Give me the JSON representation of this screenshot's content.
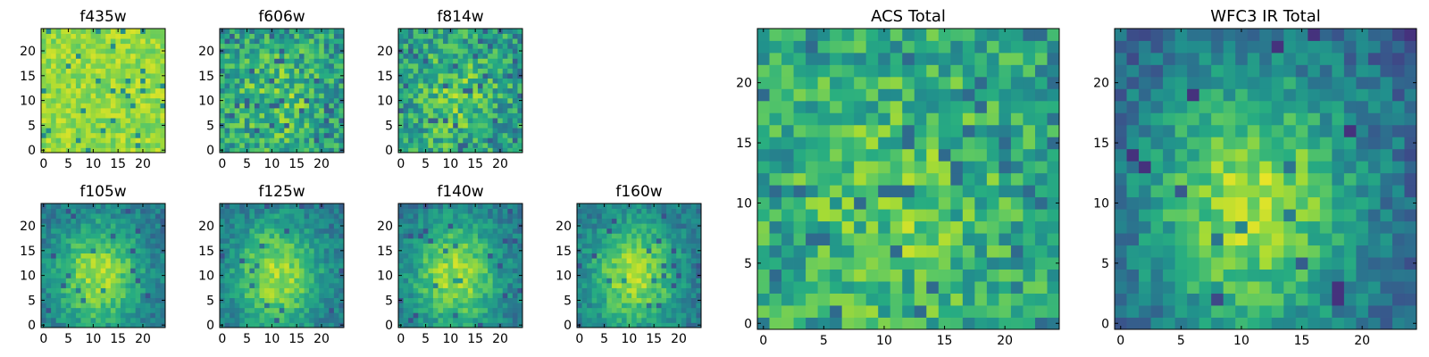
{
  "figure": {
    "colormap": "viridis",
    "colormap_stops": [
      "#440154",
      "#3b528b",
      "#21918c",
      "#5ec962",
      "#fde725"
    ]
  },
  "chart_data": [
    {
      "type": "heatmap",
      "title": "f435w",
      "grid_size": 25,
      "xlim": [
        0,
        24
      ],
      "ylim": [
        0,
        24
      ],
      "xticks": [
        "0",
        "5",
        "10",
        "15",
        "20"
      ],
      "yticks": [
        "0",
        "5",
        "10",
        "15",
        "20"
      ],
      "structure": "noise",
      "cmap_range": [
        0.45,
        0.95
      ]
    },
    {
      "type": "heatmap",
      "title": "f606w",
      "grid_size": 25,
      "xlim": [
        0,
        24
      ],
      "ylim": [
        0,
        24
      ],
      "xticks": [
        "0",
        "5",
        "10",
        "15",
        "20"
      ],
      "yticks": [
        "0",
        "5",
        "10",
        "15",
        "20"
      ],
      "structure": "weak-blob",
      "cmap_range": [
        0.3,
        0.95
      ]
    },
    {
      "type": "heatmap",
      "title": "f814w",
      "grid_size": 25,
      "xlim": [
        0,
        24
      ],
      "ylim": [
        0,
        24
      ],
      "xticks": [
        "0",
        "5",
        "10",
        "15",
        "20"
      ],
      "yticks": [
        "0",
        "5",
        "10",
        "15",
        "20"
      ],
      "structure": "weak-blob",
      "cmap_range": [
        0.3,
        0.95
      ]
    },
    {
      "type": "heatmap",
      "title": "f105w",
      "grid_size": 25,
      "xlim": [
        0,
        24
      ],
      "ylim": [
        0,
        24
      ],
      "xticks": [
        "0",
        "5",
        "10",
        "15",
        "20"
      ],
      "yticks": [
        "0",
        "5",
        "10",
        "15",
        "20"
      ],
      "structure": "blob",
      "cmap_range": [
        0.25,
        0.95
      ]
    },
    {
      "type": "heatmap",
      "title": "f125w",
      "grid_size": 25,
      "xlim": [
        0,
        24
      ],
      "ylim": [
        0,
        24
      ],
      "xticks": [
        "0",
        "5",
        "10",
        "15",
        "20"
      ],
      "yticks": [
        "0",
        "5",
        "10",
        "15",
        "20"
      ],
      "structure": "blob",
      "cmap_range": [
        0.25,
        0.95
      ]
    },
    {
      "type": "heatmap",
      "title": "f140w",
      "grid_size": 25,
      "xlim": [
        0,
        24
      ],
      "ylim": [
        0,
        24
      ],
      "xticks": [
        "0",
        "5",
        "10",
        "15",
        "20"
      ],
      "yticks": [
        "0",
        "5",
        "10",
        "15",
        "20"
      ],
      "structure": "blob",
      "cmap_range": [
        0.25,
        0.95
      ]
    },
    {
      "type": "heatmap",
      "title": "f160w",
      "grid_size": 25,
      "xlim": [
        0,
        24
      ],
      "ylim": [
        0,
        24
      ],
      "xticks": [
        "0",
        "5",
        "10",
        "15",
        "20"
      ],
      "yticks": [
        "0",
        "5",
        "10",
        "15",
        "20"
      ],
      "structure": "blob",
      "cmap_range": [
        0.25,
        0.95
      ]
    },
    {
      "type": "heatmap",
      "title": "ACS Total",
      "grid_size": 25,
      "xlim": [
        0,
        24
      ],
      "ylim": [
        0,
        24
      ],
      "xticks": [
        "0",
        "5",
        "10",
        "15",
        "20"
      ],
      "yticks": [
        "0",
        "5",
        "10",
        "15",
        "20"
      ],
      "structure": "weak-blob",
      "cmap_range": [
        0.35,
        0.95
      ]
    },
    {
      "type": "heatmap",
      "title": "WFC3 IR Total",
      "grid_size": 25,
      "xlim": [
        0,
        24
      ],
      "ylim": [
        0,
        24
      ],
      "xticks": [
        "0",
        "5",
        "10",
        "15",
        "20"
      ],
      "yticks": [
        "0",
        "5",
        "10",
        "15",
        "20"
      ],
      "structure": "blob",
      "cmap_range": [
        0.15,
        0.97
      ]
    }
  ]
}
